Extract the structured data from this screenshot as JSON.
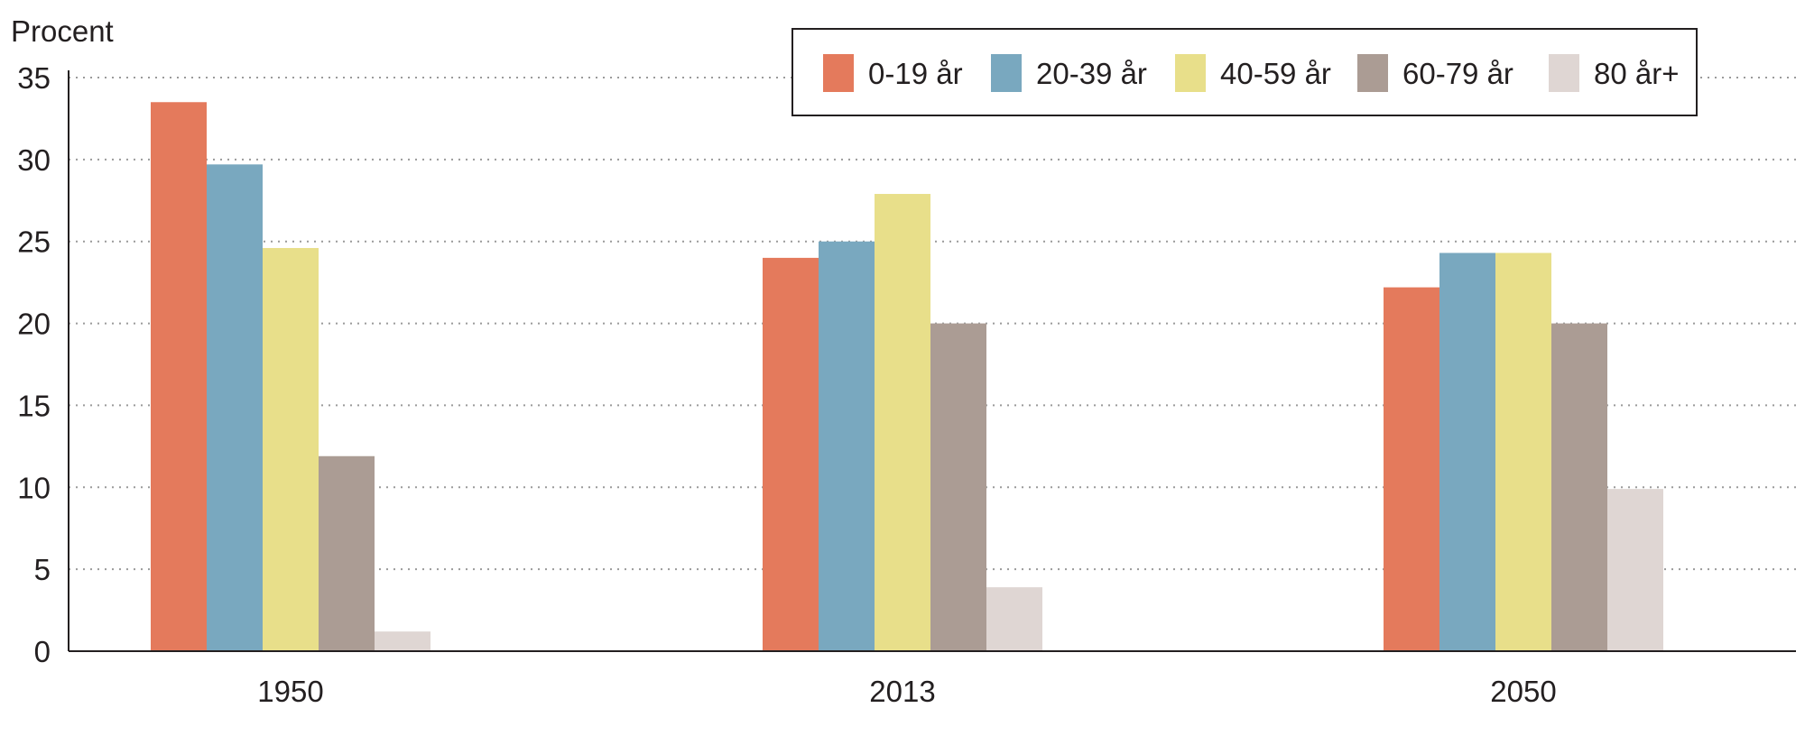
{
  "chart_data": {
    "type": "bar",
    "ylabel": "Procent",
    "ylim": [
      0,
      35
    ],
    "yticks": [
      0,
      5,
      10,
      15,
      20,
      25,
      30,
      35
    ],
    "grid": true,
    "legend_position": "top-right",
    "categories": [
      "1950",
      "2013",
      "2050"
    ],
    "series": [
      {
        "name": "0-19 år",
        "color": "#e47a5c",
        "values": [
          33.5,
          24.0,
          22.2
        ]
      },
      {
        "name": "20-39 år",
        "color": "#79a8bf",
        "values": [
          29.7,
          25.0,
          24.3
        ]
      },
      {
        "name": "40-59 år",
        "color": "#e8df8a",
        "values": [
          24.6,
          27.9,
          24.3
        ]
      },
      {
        "name": "60-79 år",
        "color": "#ab9c94",
        "values": [
          11.9,
          20.0,
          20.0
        ]
      },
      {
        "name": "80 år+",
        "color": "#dfd6d3",
        "values": [
          1.2,
          3.9,
          9.9
        ]
      }
    ]
  }
}
